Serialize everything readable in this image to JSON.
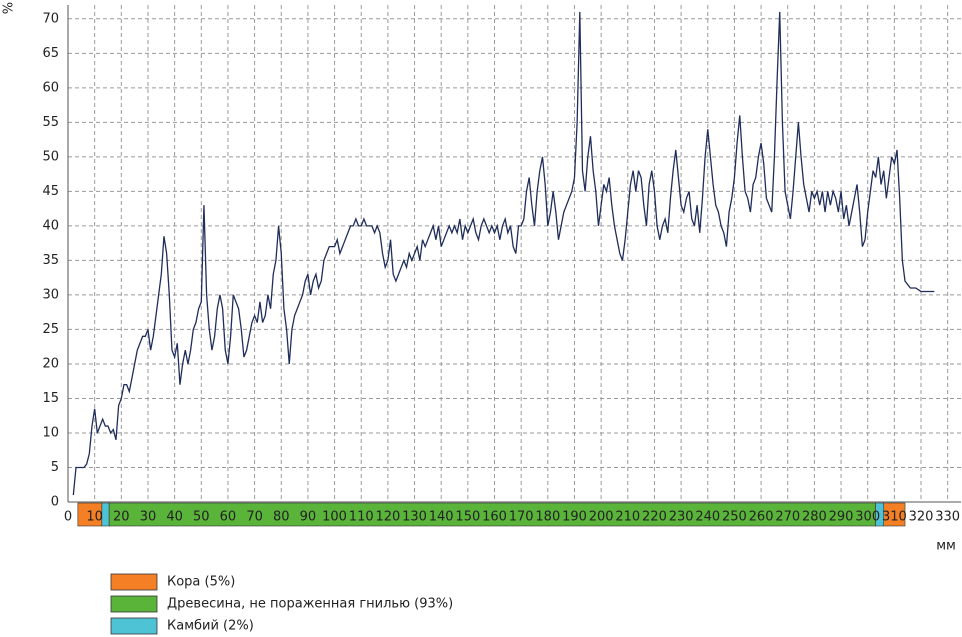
{
  "chart_data": {
    "type": "line",
    "ylabel": "%",
    "xlabel": "мм",
    "color": "#1f2d5a",
    "grid": true,
    "xlim": [
      0,
      335
    ],
    "ylim": [
      0,
      72
    ],
    "xticks": [
      0,
      10,
      20,
      30,
      40,
      50,
      60,
      70,
      80,
      90,
      100,
      110,
      120,
      130,
      140,
      150,
      160,
      170,
      180,
      190,
      200,
      210,
      220,
      230,
      240,
      250,
      260,
      270,
      280,
      290,
      300,
      310,
      320,
      330
    ],
    "yticks": [
      0,
      5,
      10,
      15,
      20,
      25,
      30,
      35,
      40,
      45,
      50,
      55,
      60,
      65,
      70
    ],
    "x": [
      2,
      3,
      4,
      5,
      6,
      7,
      8,
      9,
      10,
      11,
      12,
      13,
      14,
      15,
      16,
      17,
      18,
      19,
      20,
      21,
      22,
      23,
      24,
      25,
      26,
      27,
      28,
      29,
      30,
      31,
      32,
      33,
      34,
      35,
      36,
      37,
      38,
      39,
      40,
      41,
      42,
      43,
      44,
      45,
      46,
      47,
      48,
      49,
      50,
      51,
      52,
      53,
      54,
      55,
      56,
      57,
      58,
      59,
      60,
      61,
      62,
      63,
      64,
      65,
      66,
      67,
      68,
      69,
      70,
      71,
      72,
      73,
      74,
      75,
      76,
      77,
      78,
      79,
      80,
      81,
      82,
      83,
      84,
      85,
      86,
      87,
      88,
      89,
      90,
      91,
      92,
      93,
      94,
      95,
      96,
      97,
      98,
      99,
      100,
      101,
      102,
      103,
      104,
      105,
      106,
      107,
      108,
      109,
      110,
      111,
      112,
      113,
      114,
      115,
      116,
      117,
      118,
      119,
      120,
      121,
      122,
      123,
      124,
      125,
      126,
      127,
      128,
      129,
      130,
      131,
      132,
      133,
      134,
      135,
      136,
      137,
      138,
      139,
      140,
      141,
      142,
      143,
      144,
      145,
      146,
      147,
      148,
      149,
      150,
      151,
      152,
      153,
      154,
      155,
      156,
      157,
      158,
      159,
      160,
      161,
      162,
      163,
      164,
      165,
      166,
      167,
      168,
      169,
      170,
      171,
      172,
      173,
      174,
      175,
      176,
      177,
      178,
      179,
      180,
      181,
      182,
      183,
      184,
      185,
      186,
      187,
      188,
      189,
      190,
      191,
      192,
      193,
      194,
      195,
      196,
      197,
      198,
      199,
      200,
      201,
      202,
      203,
      204,
      205,
      206,
      207,
      208,
      209,
      210,
      211,
      212,
      213,
      214,
      215,
      216,
      217,
      218,
      219,
      220,
      221,
      222,
      223,
      224,
      225,
      226,
      227,
      228,
      229,
      230,
      231,
      232,
      233,
      234,
      235,
      236,
      237,
      238,
      239,
      240,
      241,
      242,
      243,
      244,
      245,
      246,
      247,
      248,
      249,
      250,
      251,
      252,
      253,
      254,
      255,
      256,
      257,
      258,
      259,
      260,
      261,
      262,
      263,
      264,
      265,
      266,
      267,
      268,
      269,
      270,
      271,
      272,
      273,
      274,
      275,
      276,
      277,
      278,
      279,
      280,
      281,
      282,
      283,
      284,
      285,
      286,
      287,
      288,
      289,
      290,
      291,
      292,
      293,
      294,
      295,
      296,
      297,
      298,
      299,
      300,
      301,
      302,
      303,
      304,
      305,
      306,
      307,
      308,
      309,
      310,
      311,
      312,
      313,
      314,
      316,
      318,
      320,
      322,
      325
    ],
    "values": [
      1,
      5,
      5,
      5,
      5,
      5.5,
      7,
      11,
      13.5,
      10,
      11,
      12,
      11,
      11,
      10,
      10.5,
      9,
      14,
      15,
      17,
      17,
      16,
      18,
      20,
      22,
      23,
      24,
      24,
      25,
      22,
      24,
      27,
      30,
      33,
      38.5,
      36,
      30,
      22,
      21,
      23,
      17,
      20,
      22,
      20,
      22,
      25,
      26,
      28,
      29,
      43,
      30,
      25,
      22,
      24,
      28,
      30,
      28,
      22,
      20,
      24,
      30,
      29,
      28,
      25,
      21,
      22,
      24,
      26,
      27,
      26,
      29,
      26,
      27,
      30,
      28,
      33,
      35,
      40,
      36,
      28,
      25,
      20,
      25,
      27,
      28,
      29,
      30,
      32,
      33,
      30,
      32,
      33,
      31,
      32,
      35,
      36,
      37,
      37,
      37,
      38,
      36,
      37,
      38,
      39,
      40,
      40,
      41,
      40,
      40,
      41,
      40,
      40,
      40,
      39,
      40,
      39,
      36,
      34,
      35,
      38,
      33,
      32,
      33,
      34,
      35,
      34,
      36,
      35,
      36,
      37,
      35,
      38,
      37,
      38,
      39,
      40,
      38,
      40,
      37,
      38,
      39,
      40,
      39,
      40,
      39,
      41,
      38,
      40,
      39,
      40,
      41,
      39,
      38,
      40,
      41,
      40,
      39,
      40,
      39,
      40,
      38,
      40,
      41,
      39,
      40,
      37,
      36,
      40,
      40,
      41,
      45,
      47,
      43,
      40,
      45,
      48,
      50,
      46,
      40,
      42,
      45,
      42,
      38,
      40,
      42,
      43,
      44,
      45,
      47,
      55,
      71,
      48,
      45,
      50,
      53,
      48,
      45,
      40,
      43,
      46,
      45,
      47,
      43,
      40,
      38,
      36,
      35,
      38,
      42,
      46,
      48,
      45,
      48,
      47,
      43,
      40,
      46,
      48,
      45,
      40,
      38,
      40,
      41,
      39,
      44,
      48,
      51,
      47,
      43,
      42,
      44,
      45,
      41,
      40,
      43,
      39,
      44,
      50,
      54,
      50,
      46,
      43,
      42,
      40,
      39,
      37,
      42,
      44,
      47,
      52,
      56,
      50,
      45,
      44,
      42,
      46,
      47,
      50,
      52,
      49,
      44,
      43,
      42,
      50,
      61,
      71,
      55,
      45,
      43,
      41,
      45,
      50,
      55,
      50,
      46,
      44,
      42,
      45,
      44,
      45,
      43,
      45,
      42,
      45,
      43,
      45,
      44,
      42,
      45,
      41,
      43,
      40,
      42,
      44,
      46,
      42,
      37,
      38,
      42,
      45,
      48,
      47,
      50,
      46,
      48,
      44,
      47,
      50,
      49,
      51,
      44,
      35,
      32,
      31,
      31,
      30.5,
      30.5,
      30.5
    ],
    "zones": [
      {
        "name": "Кора (5%)",
        "color": "#f47f24",
        "spans": [
          [
            3.7,
            12.7
          ],
          [
            306,
            314
          ]
        ]
      },
      {
        "name": "Древесина, не пораженная гнилью (93%)",
        "color": "#5ab43a",
        "spans": [
          [
            15.4,
            303
          ]
        ]
      },
      {
        "name": "Камбий (2%)",
        "color": "#4fc3d6",
        "spans": [
          [
            12.7,
            15.4
          ],
          [
            303,
            306
          ]
        ]
      }
    ]
  }
}
